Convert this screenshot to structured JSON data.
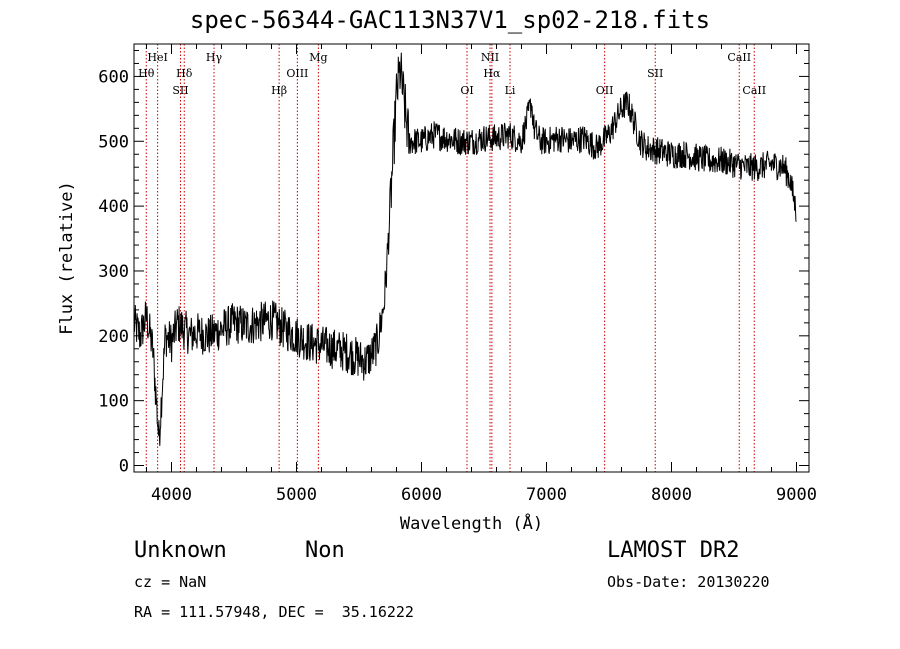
{
  "title": "spec-56344-GAC113N37V1_sp02-218.fits",
  "footer": {
    "class_name": "Unknown",
    "subclass": "Non",
    "cz": "cz = NaN",
    "coords": "RA = 111.57948, DEC =  35.16222",
    "survey": "LAMOST DR2",
    "obs_date": "Obs-Date: 20130220"
  },
  "chart_data": {
    "type": "line",
    "title": "spec-56344-GAC113N37V1_sp02-218.fits",
    "xlabel": "Wavelength (Å)",
    "ylabel": "Flux (relative)",
    "xlim": [
      3700,
      9100
    ],
    "ylim": [
      -10,
      650
    ],
    "xticks": [
      4000,
      5000,
      6000,
      7000,
      8000,
      9000
    ],
    "yticks": [
      0,
      100,
      200,
      300,
      400,
      500,
      600
    ],
    "grid": false,
    "line_color": "#000000",
    "marker_color": "#cc0000",
    "spectral_lines": [
      {
        "label": "Hθ",
        "wavelength": 3798,
        "row": 2
      },
      {
        "label": "HeI",
        "wavelength": 3889,
        "row": 1
      },
      {
        "label": "Hδ",
        "wavelength": 4102,
        "row": 2
      },
      {
        "label": "SII",
        "wavelength": 4072,
        "row": 3
      },
      {
        "label": "Hγ",
        "wavelength": 4340,
        "row": 1
      },
      {
        "label": "Hβ",
        "wavelength": 4861,
        "row": 3
      },
      {
        "label": "OIII",
        "wavelength": 5007,
        "row": 2
      },
      {
        "label": "Mg",
        "wavelength": 5175,
        "row": 1
      },
      {
        "label": "OI",
        "wavelength": 6364,
        "row": 3
      },
      {
        "label": "NII",
        "wavelength": 6548,
        "row": 1
      },
      {
        "label": "Hα",
        "wavelength": 6563,
        "row": 2
      },
      {
        "label": "Li",
        "wavelength": 6708,
        "row": 3
      },
      {
        "label": "OII",
        "wavelength": 7465,
        "row": 3
      },
      {
        "label": "SII",
        "wavelength": 7870,
        "row": 2
      },
      {
        "label": "CaII",
        "wavelength": 8542,
        "row": 1
      },
      {
        "label": "CaII",
        "wavelength": 8662,
        "row": 3
      }
    ],
    "series": [
      {
        "x": [
          3700,
          3750,
          3800,
          3850,
          3900,
          3950,
          4000,
          4050,
          4100,
          4150,
          4200,
          4300,
          4400,
          4500,
          4600,
          4700,
          4800,
          4900,
          5000,
          5100,
          5200,
          5300,
          5400,
          5500,
          5550,
          5600,
          5650,
          5700,
          5720,
          5750,
          5780,
          5800,
          5830,
          5860,
          5900,
          6000,
          6100,
          6200,
          6300,
          6400,
          6500,
          6600,
          6700,
          6800,
          6880,
          6900,
          6950,
          7000,
          7100,
          7200,
          7300,
          7400,
          7500,
          7550,
          7600,
          7650,
          7700,
          7750,
          7800,
          7900,
          8000,
          8100,
          8200,
          8300,
          8400,
          8500,
          8600,
          8700,
          8800,
          8900,
          8950,
          9000
        ],
        "y": [
          220,
          200,
          230,
          180,
          40,
          200,
          190,
          220,
          210,
          200,
          205,
          200,
          210,
          220,
          215,
          220,
          225,
          210,
          200,
          190,
          185,
          180,
          175,
          165,
          160,
          170,
          190,
          250,
          300,
          400,
          500,
          570,
          610,
          560,
          500,
          500,
          510,
          505,
          500,
          500,
          505,
          505,
          510,
          500,
          560,
          520,
          500,
          500,
          505,
          500,
          505,
          490,
          510,
          530,
          550,
          560,
          530,
          500,
          490,
          485,
          480,
          480,
          475,
          470,
          470,
          465,
          460,
          460,
          465,
          460,
          440,
          390
        ]
      }
    ]
  }
}
